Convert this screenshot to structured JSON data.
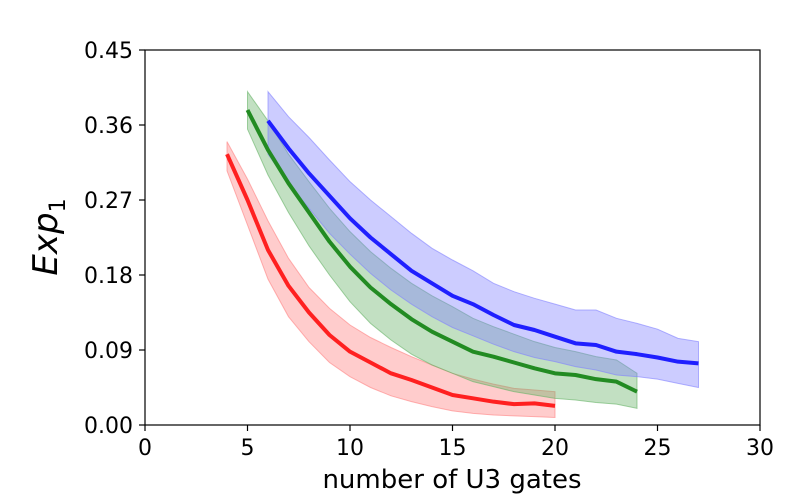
{
  "chart_data": {
    "type": "line",
    "xlabel": "number of U3 gates",
    "ylabel": "Exp",
    "ylabel_subscript": "1",
    "xlim": [
      0,
      30
    ],
    "ylim": [
      0,
      0.45
    ],
    "xticks": [
      "0",
      "5",
      "10",
      "15",
      "20",
      "25",
      "30"
    ],
    "yticks": [
      "0.00",
      "0.09",
      "0.18",
      "0.27",
      "0.36",
      "0.45"
    ],
    "grid": false,
    "legend": "none",
    "series": [
      {
        "color": "#ff2020",
        "band_color": "#ff8080",
        "x": [
          4,
          5,
          6,
          7,
          8,
          9,
          10,
          11,
          12,
          13,
          14,
          15,
          16,
          17,
          18,
          19,
          20
        ],
        "y": [
          0.325,
          0.27,
          0.21,
          0.167,
          0.135,
          0.108,
          0.088,
          0.075,
          0.062,
          0.054,
          0.045,
          0.036,
          0.032,
          0.028,
          0.025,
          0.026,
          0.023
        ],
        "lower": [
          0.305,
          0.24,
          0.175,
          0.13,
          0.1,
          0.075,
          0.058,
          0.045,
          0.035,
          0.028,
          0.022,
          0.017,
          0.014,
          0.012,
          0.011,
          0.01,
          0.009
        ],
        "upper": [
          0.34,
          0.295,
          0.245,
          0.2,
          0.165,
          0.14,
          0.12,
          0.105,
          0.093,
          0.082,
          0.072,
          0.062,
          0.055,
          0.049,
          0.044,
          0.042,
          0.04
        ]
      },
      {
        "color": "#228b22",
        "band_color": "#66b266",
        "x": [
          5,
          6,
          7,
          8,
          9,
          10,
          11,
          12,
          13,
          14,
          15,
          16,
          17,
          18,
          19,
          20,
          21,
          22,
          23,
          24
        ],
        "y": [
          0.378,
          0.33,
          0.29,
          0.255,
          0.22,
          0.19,
          0.165,
          0.145,
          0.127,
          0.112,
          0.1,
          0.088,
          0.082,
          0.075,
          0.068,
          0.062,
          0.06,
          0.055,
          0.052,
          0.04
        ],
        "lower": [
          0.355,
          0.3,
          0.255,
          0.215,
          0.18,
          0.148,
          0.122,
          0.102,
          0.085,
          0.072,
          0.062,
          0.052,
          0.046,
          0.04,
          0.036,
          0.032,
          0.03,
          0.027,
          0.025,
          0.02
        ],
        "upper": [
          0.4,
          0.365,
          0.325,
          0.292,
          0.26,
          0.232,
          0.208,
          0.188,
          0.17,
          0.155,
          0.142,
          0.128,
          0.118,
          0.109,
          0.1,
          0.093,
          0.088,
          0.082,
          0.078,
          0.062
        ]
      },
      {
        "color": "#1f1fff",
        "band_color": "#8080ff",
        "x": [
          6,
          7,
          8,
          9,
          10,
          11,
          12,
          13,
          14,
          15,
          16,
          17,
          18,
          19,
          20,
          21,
          22,
          23,
          24,
          25,
          26,
          27
        ],
        "y": [
          0.365,
          0.332,
          0.302,
          0.275,
          0.248,
          0.225,
          0.205,
          0.185,
          0.17,
          0.155,
          0.145,
          0.132,
          0.12,
          0.114,
          0.106,
          0.098,
          0.096,
          0.088,
          0.085,
          0.081,
          0.076,
          0.074
        ],
        "lower": [
          0.325,
          0.29,
          0.26,
          0.23,
          0.205,
          0.182,
          0.162,
          0.145,
          0.13,
          0.117,
          0.107,
          0.097,
          0.088,
          0.081,
          0.076,
          0.07,
          0.066,
          0.06,
          0.058,
          0.055,
          0.05,
          0.045
        ],
        "upper": [
          0.4,
          0.37,
          0.345,
          0.318,
          0.292,
          0.27,
          0.25,
          0.23,
          0.212,
          0.198,
          0.185,
          0.17,
          0.16,
          0.152,
          0.145,
          0.138,
          0.138,
          0.128,
          0.122,
          0.115,
          0.104,
          0.1
        ]
      }
    ]
  }
}
